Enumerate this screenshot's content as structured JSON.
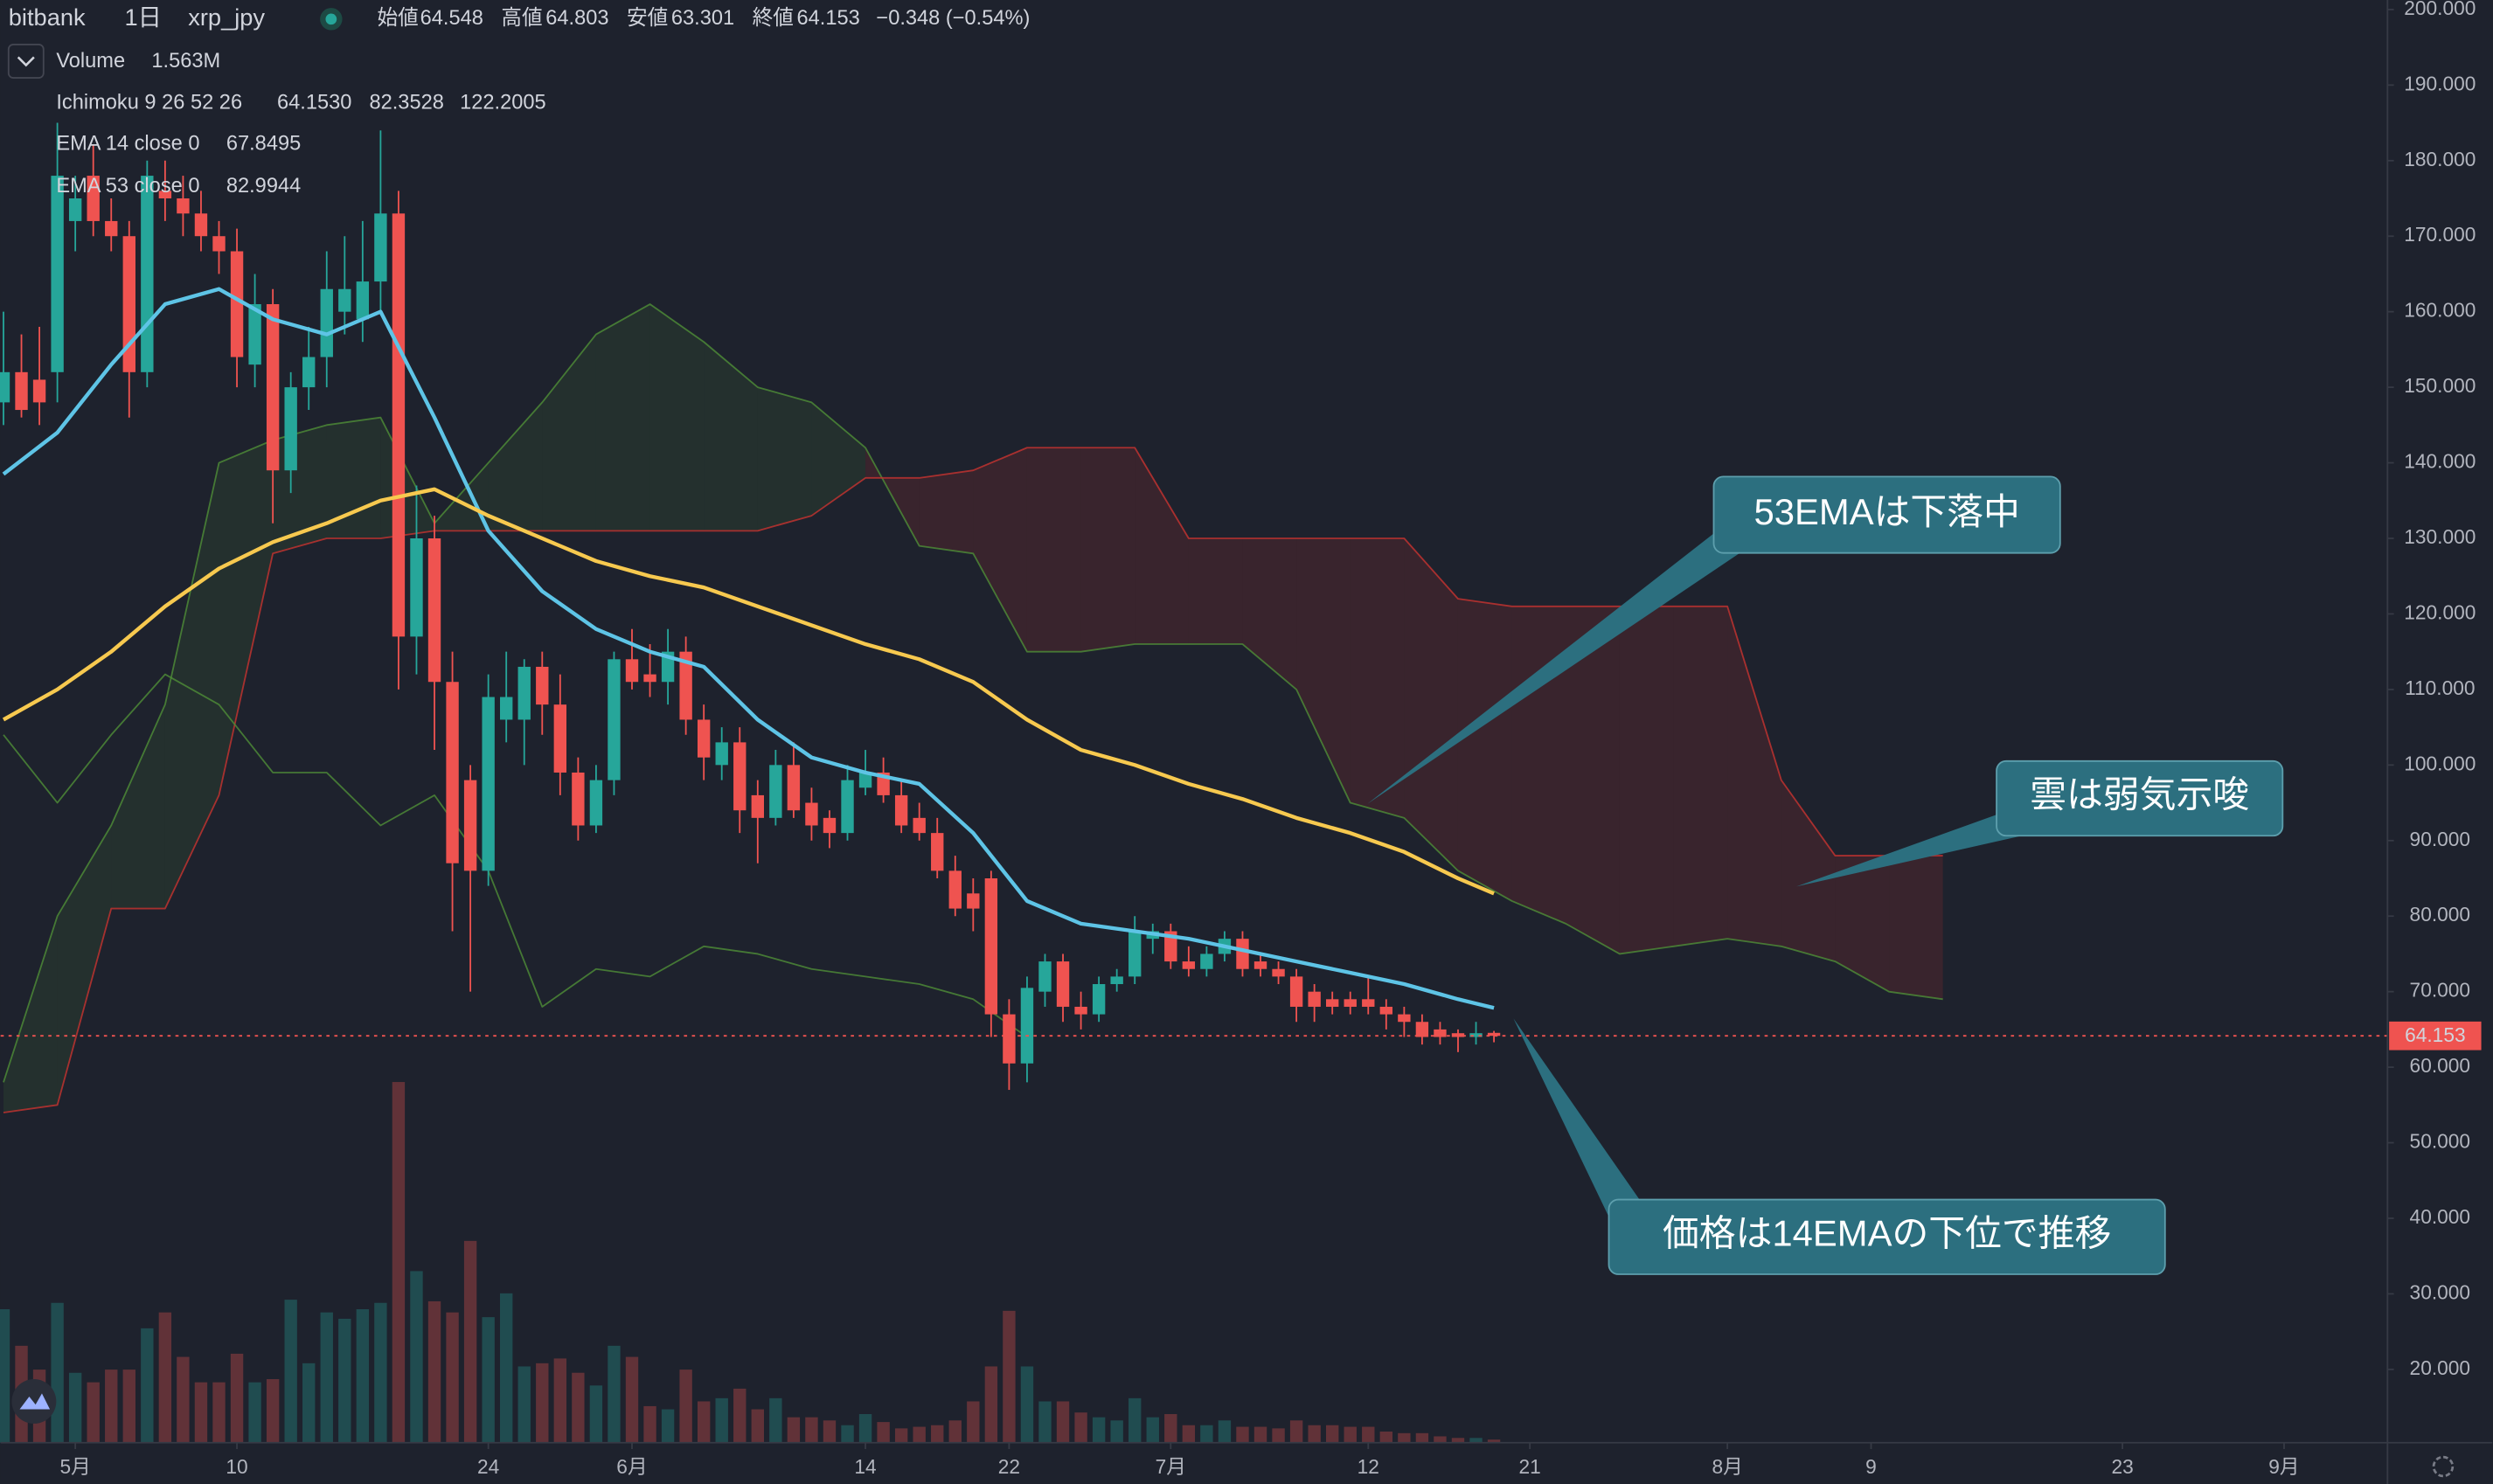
{
  "header": {
    "exchange": "bitbank",
    "interval": "1日",
    "symbol": "xrp_jpy",
    "open_label": "始値",
    "high_label": "高値",
    "low_label": "安値",
    "close_label": "終値",
    "change": "−0.348 (−0.54%)"
  },
  "chart_data": {
    "type": "candlestick",
    "up_color": "#26a69a",
    "down_color": "#ef5350",
    "x": [
      -4,
      -3,
      -2,
      -1,
      0,
      1,
      2,
      3,
      4,
      5,
      6,
      7,
      8,
      9,
      10,
      11,
      12,
      13,
      14,
      15,
      16,
      17,
      18,
      19,
      20,
      21,
      22,
      23,
      24,
      25,
      26,
      27,
      28,
      29,
      30,
      31,
      32,
      33,
      34,
      35,
      36,
      37,
      38,
      39,
      40,
      41,
      42,
      43,
      44,
      45,
      46,
      47,
      48,
      49,
      50,
      51,
      52,
      53,
      54,
      55,
      56,
      57,
      58,
      59,
      60,
      61,
      62,
      63,
      64,
      65,
      66,
      67,
      68,
      69,
      70,
      71,
      72,
      73,
      74,
      75,
      76,
      77,
      78,
      79
    ],
    "open": [
      148,
      152,
      151,
      152,
      172,
      178,
      172,
      170,
      152,
      176,
      175,
      173,
      170,
      168,
      153,
      161,
      139,
      150,
      154,
      160,
      159,
      164,
      173,
      117,
      130,
      111,
      98,
      86,
      106,
      106,
      113,
      108,
      99,
      92,
      98,
      114,
      112,
      111,
      115,
      106,
      100,
      103,
      96,
      93,
      100,
      95,
      93,
      91,
      97,
      99,
      96,
      93,
      91,
      86,
      83,
      85,
      67,
      60.5,
      70,
      74,
      68,
      67,
      71,
      72,
      77,
      78,
      74,
      73,
      75,
      77,
      74,
      73,
      72,
      70,
      69,
      69,
      69,
      68,
      67,
      66,
      65,
      64.5,
      64,
      64.548
    ],
    "high": [
      160,
      157,
      158,
      185,
      178,
      182,
      175,
      172,
      180,
      180,
      178,
      176,
      172,
      171,
      165,
      163,
      152,
      158,
      168,
      170,
      172,
      184,
      176,
      137,
      133,
      115,
      100,
      112,
      115,
      114,
      115,
      112,
      101,
      100,
      115,
      118,
      116,
      118,
      117,
      108,
      105,
      105,
      98,
      102,
      103,
      97,
      94,
      100,
      102,
      101,
      98,
      95,
      93,
      88,
      85,
      86,
      69,
      72,
      75,
      75,
      70,
      72,
      73,
      80,
      79,
      79,
      76,
      76,
      78,
      78,
      75,
      74,
      73,
      71,
      70,
      70,
      72,
      69,
      68,
      67,
      66,
      65,
      66,
      64.803
    ],
    "low": [
      145,
      146,
      145,
      148,
      168,
      170,
      168,
      146,
      150,
      172,
      170,
      168,
      165,
      150,
      150,
      132,
      136,
      147,
      150,
      157,
      156,
      160,
      110,
      112,
      102,
      78,
      70,
      84,
      103,
      100,
      104,
      96,
      90,
      91,
      96,
      110,
      109,
      108,
      104,
      98,
      98,
      91,
      87,
      92,
      93,
      90,
      89,
      90,
      96,
      95,
      91,
      90,
      85,
      80,
      78,
      64,
      57,
      58,
      68,
      66,
      65,
      66,
      70,
      71,
      75,
      73,
      72,
      72,
      74,
      72,
      72,
      71,
      66,
      66,
      67,
      67,
      67,
      65,
      64,
      63,
      63,
      62,
      63,
      63.301
    ],
    "close": [
      152,
      147,
      148,
      178,
      175,
      172,
      170,
      152,
      178,
      175,
      173,
      170,
      168,
      154,
      161,
      139,
      150,
      154,
      163,
      163,
      164,
      173,
      117,
      130,
      111,
      87,
      86,
      109,
      109,
      113,
      108,
      99,
      92,
      98,
      114,
      111,
      111,
      115,
      106,
      101,
      103,
      94,
      93,
      100,
      94,
      92,
      91,
      98,
      99,
      96,
      92,
      91,
      86,
      81,
      81,
      67,
      60.5,
      70.5,
      74,
      68,
      67,
      71,
      72,
      78,
      78,
      74,
      73,
      75,
      77,
      73,
      73,
      72,
      68,
      68,
      68,
      68,
      68,
      67,
      66,
      64,
      64,
      64,
      64.5,
      64.153
    ],
    "volume": [
      67.2,
      48.8,
      36.8,
      70.4,
      35.2,
      30.4,
      36.8,
      36.8,
      57.6,
      65.6,
      43.2,
      30.4,
      30.4,
      44.8,
      30.4,
      32,
      72,
      40,
      65.6,
      62.4,
      67.2,
      70.4,
      181.6,
      86.4,
      71.2,
      65.6,
      101.6,
      63.2,
      75.2,
      38.4,
      40,
      42.4,
      35.2,
      28.8,
      48.8,
      43.2,
      18.4,
      16.8,
      36.8,
      20.8,
      22.4,
      27.2,
      16.8,
      22.4,
      12.8,
      12.8,
      11.2,
      8.8,
      14.4,
      10.4,
      7.2,
      8,
      8.8,
      11.2,
      20.8,
      38.4,
      66.4,
      38.4,
      20.8,
      20.8,
      15.2,
      12.8,
      11.2,
      22.4,
      12.8,
      14.4,
      8.8,
      8.8,
      11.2,
      8,
      8,
      7.2,
      11.2,
      8.8,
      8.8,
      8,
      8,
      5.6,
      4.8,
      4.8,
      3.2,
      2.4,
      2.4,
      1.563
    ],
    "volume_legend": {
      "name": "Volume",
      "value_label": "1.563M"
    },
    "series": [
      {
        "name": "EMA 14 close 0",
        "color": "#5ec4e6",
        "x": [
          -4,
          -1,
          2,
          5,
          8,
          11,
          14,
          17,
          20,
          23,
          26,
          29,
          32,
          35,
          38,
          41,
          44,
          47,
          50,
          53,
          56,
          59,
          62,
          65,
          68,
          71,
          74,
          77,
          79
        ],
        "values": [
          138.5,
          144,
          153,
          161,
          163,
          159,
          157,
          160,
          146,
          131,
          123,
          118,
          115,
          113,
          106,
          101,
          99,
          97.5,
          91,
          82,
          79,
          78,
          77,
          75.5,
          74,
          72.5,
          71,
          69,
          67.8495
        ]
      },
      {
        "name": "EMA 53 close 0",
        "color": "#f7c94f",
        "x": [
          -4,
          -1,
          2,
          5,
          8,
          11,
          14,
          17,
          20,
          23,
          26,
          29,
          32,
          35,
          38,
          41,
          44,
          47,
          50,
          53,
          56,
          59,
          62,
          65,
          68,
          71,
          74,
          77,
          79
        ],
        "values": [
          106,
          110,
          115,
          121,
          126,
          129.5,
          132,
          135,
          136.5,
          133,
          130,
          127,
          125,
          123.5,
          121,
          118.5,
          116,
          114,
          111,
          106,
          102,
          100,
          97.5,
          95.5,
          93,
          91,
          88.5,
          85,
          82.9944
        ]
      }
    ],
    "ichimoku": {
      "name": "Ichimoku 9 26 52 26",
      "value_labels": [
        "64.1530",
        "82.3528",
        "122.2005"
      ],
      "x": [
        -4,
        -1,
        2,
        5,
        8,
        11,
        14,
        17,
        20,
        23,
        26,
        29,
        32,
        35,
        38,
        41,
        44,
        47,
        50,
        53,
        56,
        59,
        62,
        65,
        68,
        71,
        74,
        77,
        80,
        83,
        86,
        89,
        92,
        95,
        98,
        101,
        104
      ],
      "span_a": {
        "color": "#4f8f37",
        "values": [
          58,
          80,
          92,
          108,
          140,
          143,
          145,
          146,
          132,
          140,
          148,
          157,
          161,
          156,
          150,
          148,
          142,
          129,
          128,
          115,
          115,
          116,
          116,
          116,
          110,
          95,
          93,
          86,
          82,
          79,
          75,
          76,
          77,
          76,
          74,
          70,
          69
        ]
      },
      "span_b": {
        "color": "#c8332f",
        "values": [
          54,
          55,
          81,
          81,
          96,
          128,
          130,
          130,
          131,
          131,
          131,
          131,
          131,
          131,
          131,
          133,
          138,
          138,
          139,
          142,
          142,
          142,
          130,
          130,
          130,
          130,
          130,
          122,
          121,
          121,
          121,
          121,
          121,
          98,
          88,
          88,
          88
        ]
      },
      "lagging": {
        "color": "#4f8f37",
        "x": [
          -4,
          -1,
          2,
          5,
          8,
          11,
          14,
          17,
          20,
          23,
          26,
          29,
          32,
          35,
          38,
          41,
          44,
          47,
          50,
          53
        ],
        "values": [
          104,
          95,
          104,
          112,
          108,
          99,
          99,
          92,
          96,
          86,
          68,
          73,
          72,
          76,
          75,
          73,
          72,
          71,
          69,
          64
        ]
      }
    },
    "xlim": [
      -4.16,
      128.76
    ],
    "xticks": [
      {
        "value": 0,
        "label": "5月"
      },
      {
        "value": 9,
        "label": "10"
      },
      {
        "value": 23,
        "label": "24"
      },
      {
        "value": 31,
        "label": "6月"
      },
      {
        "value": 44,
        "label": "14"
      },
      {
        "value": 52,
        "label": "22"
      },
      {
        "value": 61,
        "label": "7月"
      },
      {
        "value": 72,
        "label": "12"
      },
      {
        "value": 81,
        "label": "21"
      },
      {
        "value": 92,
        "label": "8月"
      },
      {
        "value": 100,
        "label": "9"
      },
      {
        "value": 114,
        "label": "23"
      },
      {
        "value": 123,
        "label": "9月"
      }
    ],
    "ylim": [
      10.3,
      201.26
    ],
    "yticks": [
      {
        "value": 20,
        "label": "20.000"
      },
      {
        "value": 30,
        "label": "30.000"
      },
      {
        "value": 40,
        "label": "40.000"
      },
      {
        "value": 50,
        "label": "50.000"
      },
      {
        "value": 60,
        "label": "60.000"
      },
      {
        "value": 70,
        "label": "70.000"
      },
      {
        "value": 80,
        "label": "80.000"
      },
      {
        "value": 90,
        "label": "90.000"
      },
      {
        "value": 100,
        "label": "100.000"
      },
      {
        "value": 110,
        "label": "110.000"
      },
      {
        "value": 120,
        "label": "120.000"
      },
      {
        "value": 130,
        "label": "130.000"
      },
      {
        "value": 140,
        "label": "140.000"
      },
      {
        "value": 150,
        "label": "150.000"
      },
      {
        "value": 160,
        "label": "160.000"
      },
      {
        "value": 170,
        "label": "170.000"
      },
      {
        "value": 180,
        "label": "180.000"
      },
      {
        "value": 190,
        "label": "190.000"
      },
      {
        "value": 200,
        "label": "200.000"
      }
    ],
    "annotations": [
      "53EMAは下落中",
      "雲は弱気示唆",
      "価格は14EMAの下位で推移"
    ]
  }
}
